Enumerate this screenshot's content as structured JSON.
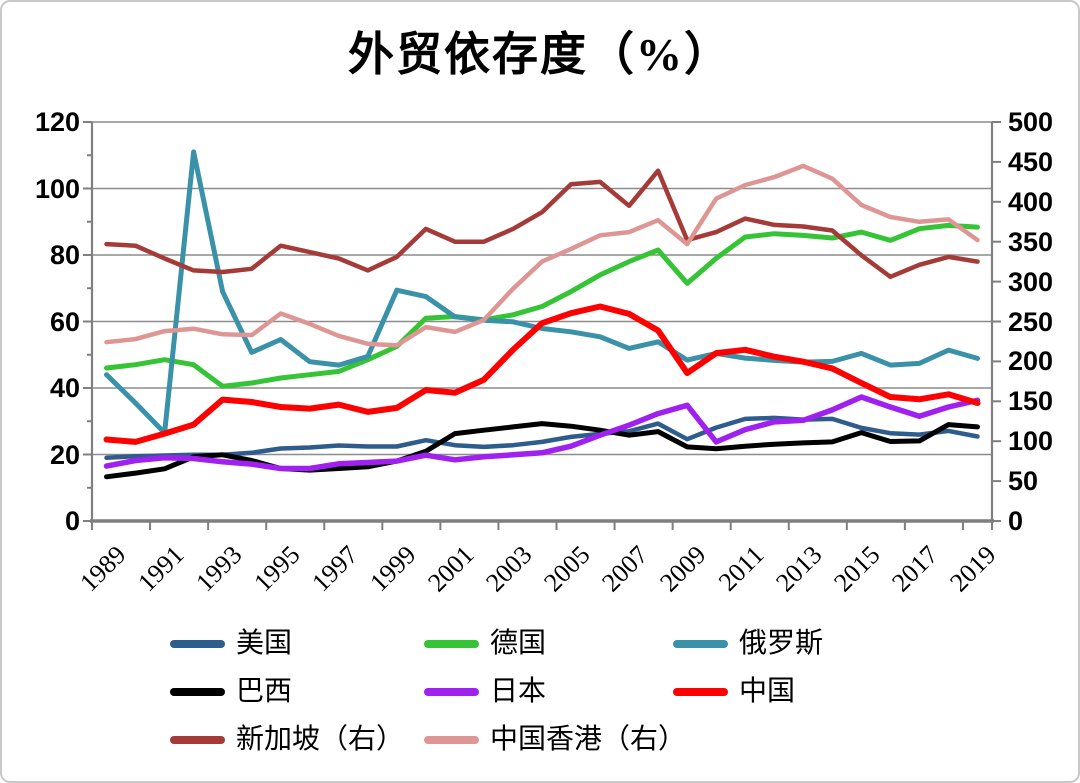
{
  "title": "外贸依存度（%）",
  "chart_data": {
    "type": "line",
    "title": "外贸依存度（%）",
    "x": [
      1989,
      1990,
      1991,
      1992,
      1993,
      1994,
      1995,
      1996,
      1997,
      1998,
      1999,
      2000,
      2001,
      2002,
      2003,
      2004,
      2005,
      2006,
      2007,
      2008,
      2009,
      2010,
      2011,
      2012,
      2013,
      2014,
      2015,
      2016,
      2017,
      2018,
      2019
    ],
    "x_tick_labels": [
      "1989",
      "1991",
      "1993",
      "1995",
      "1997",
      "1999",
      "2001",
      "2003",
      "2005",
      "2007",
      "2009",
      "2011",
      "2013",
      "2015",
      "2017",
      "2019"
    ],
    "left_axis": {
      "min": 0,
      "max": 120,
      "tick_step": 20,
      "minor_step": 10,
      "tick_labels": [
        "0",
        "20",
        "40",
        "60",
        "80",
        "100",
        "120"
      ]
    },
    "right_axis": {
      "min": 0,
      "max": 500,
      "tick_step": 50,
      "tick_labels": [
        "0",
        "50",
        "100",
        "150",
        "200",
        "250",
        "300",
        "350",
        "400",
        "450",
        "500"
      ]
    },
    "grid": true,
    "legend_position": "bottom",
    "series": [
      {
        "name": "美国",
        "axis": "left",
        "color": "#2E5C8C",
        "stroke_width": 4.5,
        "values": [
          19,
          19.5,
          19.7,
          19.9,
          19.9,
          20.5,
          21.8,
          22.1,
          22.7,
          22.4,
          22.4,
          24.3,
          22.8,
          22.3,
          22.8,
          23.8,
          25.3,
          26.2,
          27,
          29.3,
          24.6,
          28.1,
          30.7,
          31,
          30.5,
          30.7,
          28,
          26.4,
          26,
          27.1,
          25.4
        ]
      },
      {
        "name": "德国",
        "axis": "left",
        "color": "#35C435",
        "stroke_width": 5,
        "values": [
          46,
          47,
          48.5,
          47,
          40.5,
          41.5,
          43,
          44,
          45,
          48.5,
          52.5,
          61,
          61.5,
          60.5,
          62,
          64.5,
          69,
          74,
          78,
          81.5,
          71.5,
          79,
          85.4,
          86.4,
          85.9,
          85.1,
          86.9,
          84.4,
          87.9,
          88.9,
          88.4
        ]
      },
      {
        "name": "俄罗斯",
        "axis": "left",
        "color": "#3A92A8",
        "stroke_width": 5,
        "values": [
          44,
          35.5,
          26.5,
          111,
          69,
          50.7,
          54.6,
          47.9,
          46.9,
          49.5,
          69.4,
          67.5,
          61.4,
          60.4,
          59.9,
          57.9,
          56.9,
          55.4,
          51.9,
          53.9,
          48.4,
          50.4,
          49,
          48.3,
          47.8,
          48,
          50.4,
          46.9,
          47.4,
          51.4,
          48.9
        ]
      },
      {
        "name": "巴西",
        "axis": "left",
        "color": "#000000",
        "stroke_width": 5,
        "values": [
          13.3,
          14.4,
          15.7,
          19.3,
          19.9,
          18.2,
          15.8,
          15.3,
          15.8,
          16.3,
          18,
          21,
          26.3,
          27.3,
          28.3,
          29.3,
          28.5,
          27.3,
          25.8,
          26.9,
          22.3,
          21.7,
          22.5,
          23.1,
          23.5,
          23.8,
          26.6,
          23.9,
          24.1,
          29,
          28.3
        ]
      },
      {
        "name": "日本",
        "axis": "left",
        "color": "#A020F0",
        "stroke_width": 5.5,
        "values": [
          16.5,
          18.2,
          19,
          18.8,
          17.8,
          17.1,
          15.8,
          15.8,
          17.2,
          17.6,
          18,
          19.8,
          18.4,
          19.3,
          19.9,
          20.5,
          22.5,
          25.8,
          28.8,
          32.3,
          34.8,
          23.8,
          27.5,
          29.8,
          30.3,
          33.4,
          37.3,
          34.3,
          31.5,
          34.3,
          36.3
        ]
      },
      {
        "name": "中国",
        "axis": "left",
        "color": "#FE0000",
        "stroke_width": 6,
        "values": [
          24.5,
          23.8,
          26.3,
          29,
          36.5,
          35.8,
          34.3,
          33.8,
          35,
          32.8,
          34,
          39.4,
          38.6,
          42.5,
          51.5,
          59.5,
          62.5,
          64.5,
          62.3,
          57.3,
          44.5,
          50.5,
          51.5,
          49.4,
          47.9,
          45.9,
          41.5,
          37.3,
          36.6,
          38.1,
          35.5
        ]
      },
      {
        "name": "新加坡（右）",
        "axis": "right",
        "color": "#A43B38",
        "stroke_width": 4.5,
        "values": [
          347,
          345,
          329,
          314,
          312,
          316,
          345,
          337,
          329,
          314,
          331,
          366,
          350,
          350,
          366,
          387,
          422,
          425,
          395,
          439,
          352,
          362,
          379,
          371,
          369,
          364,
          333,
          306,
          321,
          331,
          325
        ]
      },
      {
        "name": "中国香港（右）",
        "axis": "right",
        "color": "#DD9694",
        "stroke_width": 4.5,
        "values": [
          224,
          228,
          238,
          241,
          234,
          233,
          260,
          247,
          232,
          222,
          220,
          243,
          237,
          252,
          291,
          325,
          341,
          358,
          362,
          377,
          347,
          404,
          421,
          431,
          445,
          429,
          396,
          381,
          375,
          378,
          352
        ]
      }
    ]
  },
  "layout_colors": {
    "gridline": "#8C8C8C",
    "axis": "#7F7F7F",
    "page_border": "#C9C9C9",
    "text": "#000000"
  }
}
